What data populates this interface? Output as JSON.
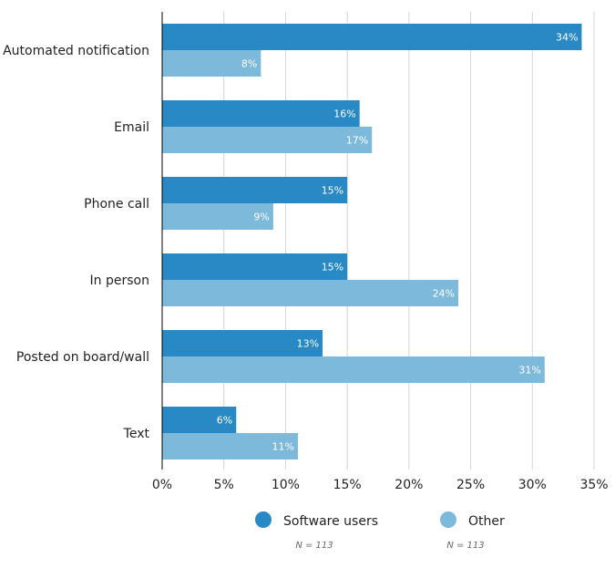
{
  "chart_data": {
    "type": "bar",
    "orientation": "horizontal",
    "title": "",
    "xlabel": "",
    "ylabel": "",
    "categories": [
      "Automated notification",
      "Email",
      "Phone call",
      "In person",
      "Posted on board/wall",
      "Text"
    ],
    "series": [
      {
        "name": "Software users",
        "color": "#2889c5",
        "n_label": "N = 113",
        "values": [
          34,
          16,
          15,
          15,
          13,
          6
        ]
      },
      {
        "name": "Other",
        "color": "#7db9da",
        "n_label": "N = 113",
        "values": [
          8,
          17,
          9,
          24,
          31,
          11
        ]
      }
    ],
    "xlim": [
      0,
      35
    ],
    "xticks": [
      0,
      5,
      10,
      15,
      20,
      25,
      30,
      35
    ],
    "tick_suffix": "%",
    "value_suffix": "%",
    "grid": true,
    "legend": "bottom"
  }
}
